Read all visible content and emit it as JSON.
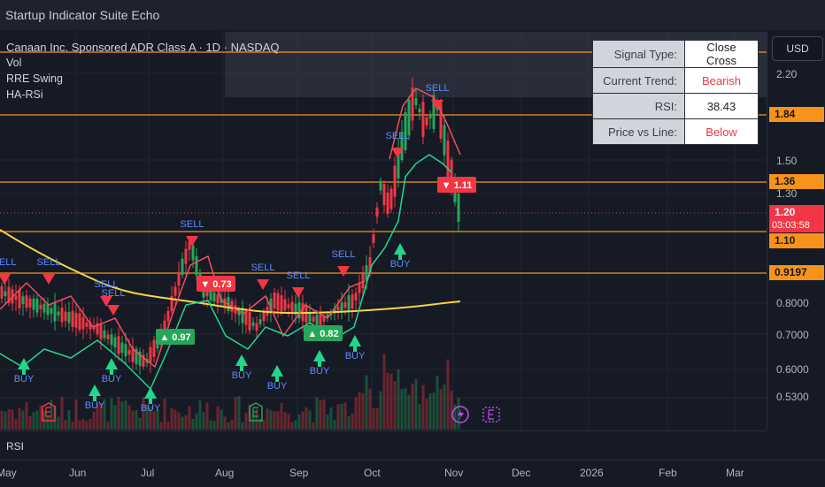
{
  "window": {
    "title": "Startup Indicator Suite Echo"
  },
  "legend": {
    "symbol": "Canaan Inc. Sponsored ADR Class A · 1D · NASDAQ",
    "indicators": [
      "Vol",
      "RRE Swing",
      "HA-RSi"
    ]
  },
  "currency_button": "USD",
  "signal_table": {
    "rows": [
      {
        "key": "Signal Type:",
        "value": "Close Cross",
        "value_color": "#222222"
      },
      {
        "key": "Current Trend:",
        "value": "Bearish",
        "value_color": "#f23645"
      },
      {
        "key": "RSI:",
        "value": "38.43",
        "value_color": "#222222"
      },
      {
        "key": "Price vs Line:",
        "value": "Below",
        "value_color": "#f23645"
      }
    ]
  },
  "price_axis": {
    "ticks": [
      "2.20",
      "1.50",
      "1.30",
      "0.8000",
      "0.7000",
      "0.6000",
      "0.5300"
    ],
    "labels": [
      {
        "text": "1.84",
        "bg": "#f7931a",
        "fg": "#131722"
      },
      {
        "text": "1.36",
        "bg": "#f7931a",
        "fg": "#131722"
      },
      {
        "text": "1.20",
        "bg": "#f23645",
        "fg": "#ffffff"
      },
      {
        "text": "03:03:58",
        "bg": "#f23645",
        "fg": "#ffffff"
      },
      {
        "text": "1.10",
        "bg": "#f7931a",
        "fg": "#131722"
      },
      {
        "text": "0.9197",
        "bg": "#f7931a",
        "fg": "#131722"
      }
    ]
  },
  "time_axis": {
    "ticks": [
      "May",
      "Jun",
      "Jul",
      "Aug",
      "Sep",
      "Oct",
      "Nov",
      "Dec",
      "2026",
      "Feb",
      "Mar"
    ]
  },
  "rsi_pane": {
    "label": "RSI"
  },
  "signals": [
    {
      "type": "SELL",
      "text": "SELL"
    },
    {
      "type": "SELL",
      "text": "SELL"
    },
    {
      "type": "SELL",
      "text": "SELL"
    },
    {
      "type": "SELL",
      "text": "SELL"
    },
    {
      "type": "SELL",
      "text": "SELL"
    },
    {
      "type": "SELL",
      "text": "SELL"
    },
    {
      "type": "SELL",
      "text": "SELL"
    },
    {
      "type": "SELL",
      "text": "SELL"
    },
    {
      "type": "SELL",
      "text": "SELL"
    },
    {
      "type": "SELL",
      "text": "SELL"
    },
    {
      "type": "BUY",
      "text": "BUY"
    },
    {
      "type": "BUY",
      "text": "BUY"
    },
    {
      "type": "BUY",
      "text": "BUY"
    },
    {
      "type": "BUY",
      "text": "BUY"
    },
    {
      "type": "BUY",
      "text": "BUY"
    },
    {
      "type": "BUY",
      "text": "BUY"
    },
    {
      "type": "BUY",
      "text": "BUY"
    },
    {
      "type": "BUY",
      "text": "BUY"
    },
    {
      "type": "BUY",
      "text": "BUY"
    }
  ],
  "value_badges": [
    {
      "text": "▲ 0.97",
      "color": "#26a65b"
    },
    {
      "text": "▼ 0.73",
      "color": "#f23645"
    },
    {
      "text": "▲ 0.82",
      "color": "#26a65b"
    },
    {
      "text": "▼ 1.11",
      "color": "#f23645"
    }
  ],
  "colors": {
    "up": "#26a65b",
    "down": "#f23645",
    "ma": "#f5d547",
    "level": "#f7931a",
    "swing_up": "#22d68c",
    "swing_down": "#f24f5d"
  }
}
